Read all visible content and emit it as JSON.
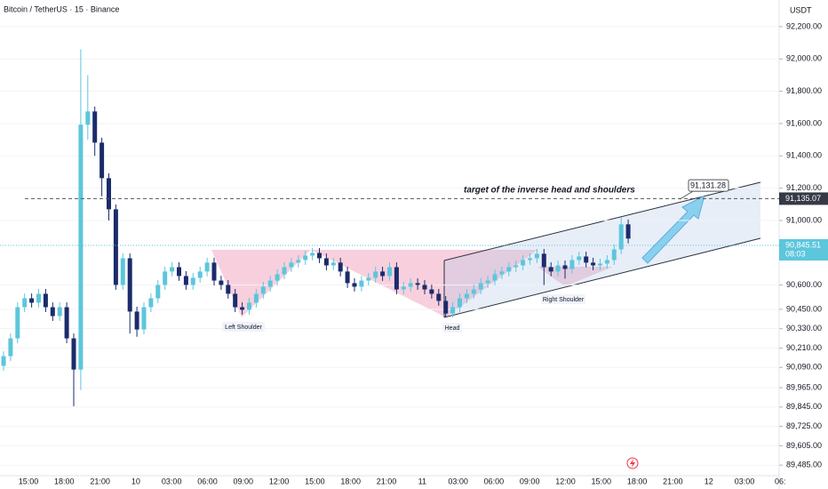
{
  "chart_data": {
    "type": "candlestick",
    "title": "Bitcoin / TetherUS · 15 · Binance",
    "currency": "USDT",
    "up_color": "#5cc6dc",
    "down_color": "#1b2b6b",
    "open": [
      90100,
      90160,
      90270,
      90463,
      90518,
      90491,
      90546,
      90463,
      90408,
      90463,
      90270,
      90077,
      91593,
      91675,
      91482,
      91262,
      91069,
      90601,
      90766,
      90436,
      90325,
      90463,
      90518,
      90601,
      90684,
      90711,
      90656,
      90601,
      90645,
      90684,
      90739,
      90628,
      90601,
      90546,
      90463,
      90447,
      90491,
      90546,
      90590,
      90628,
      90667,
      90711,
      90739,
      90755,
      90783,
      90799,
      90766,
      90722,
      90739,
      90684,
      90612,
      90590,
      90628,
      90645,
      90684,
      90656,
      90711,
      90573,
      90590,
      90612,
      90601,
      90573,
      90546,
      90502,
      90424,
      90463,
      90518,
      90546,
      90573,
      90612,
      90628,
      90667,
      90684,
      90711,
      90722,
      90755,
      90766,
      90794,
      90711,
      90684,
      90722,
      90700,
      90755,
      90777,
      90739,
      90722,
      90733,
      90755,
      90821,
      90976
    ],
    "high": [
      90190,
      90300,
      90493,
      90548,
      90548,
      90576,
      90576,
      90493,
      90493,
      90493,
      90300,
      92060,
      91900,
      91705,
      91512,
      91292,
      91099,
      90796,
      90796,
      90466,
      90493,
      90548,
      90631,
      90714,
      90741,
      90741,
      90686,
      90675,
      90714,
      90769,
      90769,
      90658,
      90631,
      90576,
      90493,
      90521,
      90576,
      90620,
      90658,
      90697,
      90741,
      90769,
      90785,
      90813,
      90829,
      90829,
      90796,
      90769,
      90769,
      90714,
      90642,
      90658,
      90675,
      90714,
      90714,
      90741,
      90741,
      90620,
      90642,
      90642,
      90631,
      90603,
      90576,
      90532,
      90493,
      90548,
      90576,
      90603,
      90642,
      90658,
      90697,
      90714,
      90741,
      90752,
      90785,
      90796,
      90824,
      90824,
      90741,
      90752,
      90752,
      90785,
      90807,
      90807,
      90769,
      90763,
      90785,
      90851,
      91020,
      91006
    ],
    "low": [
      90070,
      90130,
      90240,
      90433,
      90461,
      90461,
      90433,
      90378,
      90378,
      90240,
      89850,
      89950,
      91500,
      91400,
      91150,
      91000,
      90571,
      90571,
      90300,
      90280,
      90295,
      90433,
      90488,
      90571,
      90654,
      90626,
      90571,
      90571,
      90615,
      90654,
      90598,
      90571,
      90516,
      90433,
      90417,
      90417,
      90461,
      90516,
      90560,
      90598,
      90637,
      90681,
      90709,
      90725,
      90753,
      90736,
      90692,
      90692,
      90654,
      90582,
      90560,
      90560,
      90598,
      90615,
      90626,
      90626,
      90543,
      90543,
      90560,
      90571,
      90543,
      90516,
      90472,
      90400,
      90400,
      90433,
      90488,
      90516,
      90543,
      90582,
      90598,
      90637,
      90654,
      90681,
      90692,
      90725,
      90736,
      90600,
      90654,
      90654,
      90640,
      90670,
      90725,
      90709,
      90692,
      90692,
      90703,
      90725,
      90791,
      90858
    ],
    "close": [
      90160,
      90270,
      90463,
      90518,
      90491,
      90546,
      90463,
      90408,
      90463,
      90270,
      90077,
      91593,
      91675,
      91482,
      91262,
      91069,
      90601,
      90766,
      90436,
      90325,
      90463,
      90518,
      90601,
      90684,
      90711,
      90656,
      90601,
      90645,
      90684,
      90739,
      90628,
      90601,
      90546,
      90463,
      90447,
      90491,
      90546,
      90590,
      90628,
      90667,
      90711,
      90739,
      90755,
      90783,
      90799,
      90766,
      90722,
      90739,
      90684,
      90612,
      90590,
      90628,
      90645,
      90684,
      90656,
      90711,
      90573,
      90590,
      90612,
      90601,
      90573,
      90546,
      90502,
      90424,
      90463,
      90518,
      90546,
      90573,
      90612,
      90628,
      90667,
      90684,
      90711,
      90722,
      90755,
      90766,
      90794,
      90711,
      90684,
      90722,
      90700,
      90755,
      90777,
      90739,
      90722,
      90733,
      90755,
      90821,
      90976,
      90888
    ],
    "x_labels": [
      "15:00",
      "18:00",
      "21:00",
      "10",
      "03:00",
      "06:00",
      "09:00",
      "12:00",
      "15:00",
      "18:00",
      "21:00",
      "11",
      "03:00",
      "06:00",
      "09:00",
      "12:00",
      "15:00",
      "18:00",
      "21:00",
      "12",
      "03:00",
      "06:"
    ],
    "ylim": [
      89420,
      92365
    ],
    "yticks": [
      {
        "value": 92200,
        "label": "92,200.00"
      },
      {
        "value": 92000,
        "label": "92,000.00"
      },
      {
        "value": 91800,
        "label": "91,800.00"
      },
      {
        "value": 91600,
        "label": "91,600.00"
      },
      {
        "value": 91400,
        "label": "91,400.00"
      },
      {
        "value": 91200,
        "label": "91,200.00"
      },
      {
        "value": 91000,
        "label": "91,000.00"
      },
      {
        "value": 90600,
        "label": "90,600.00"
      },
      {
        "value": 90450,
        "label": "90,450.00"
      },
      {
        "value": 90330,
        "label": "90,330.00"
      },
      {
        "value": 90210,
        "label": "90,210.00"
      },
      {
        "value": 90090,
        "label": "90,090.00"
      },
      {
        "value": 89965,
        "label": "89,965.00"
      },
      {
        "value": 89845,
        "label": "89,845.00"
      },
      {
        "value": 89725,
        "label": "89,725.00"
      },
      {
        "value": 89605,
        "label": "89,605.00"
      },
      {
        "value": 89485,
        "label": "89,485.00"
      }
    ],
    "price_lines": [
      {
        "value": 91135.07,
        "label": "91,135.07"
      },
      {
        "value": 90845.51,
        "label": "90,845.51",
        "countdown": "08:03"
      }
    ],
    "target": {
      "value": 91131.28,
      "label": "91,131.28"
    },
    "annotations": {
      "target_text": "target of the inverse head and shoulders",
      "left_shoulder": "Left Shoulder",
      "head": "Head",
      "right_shoulder": "Right Shoulder"
    }
  }
}
